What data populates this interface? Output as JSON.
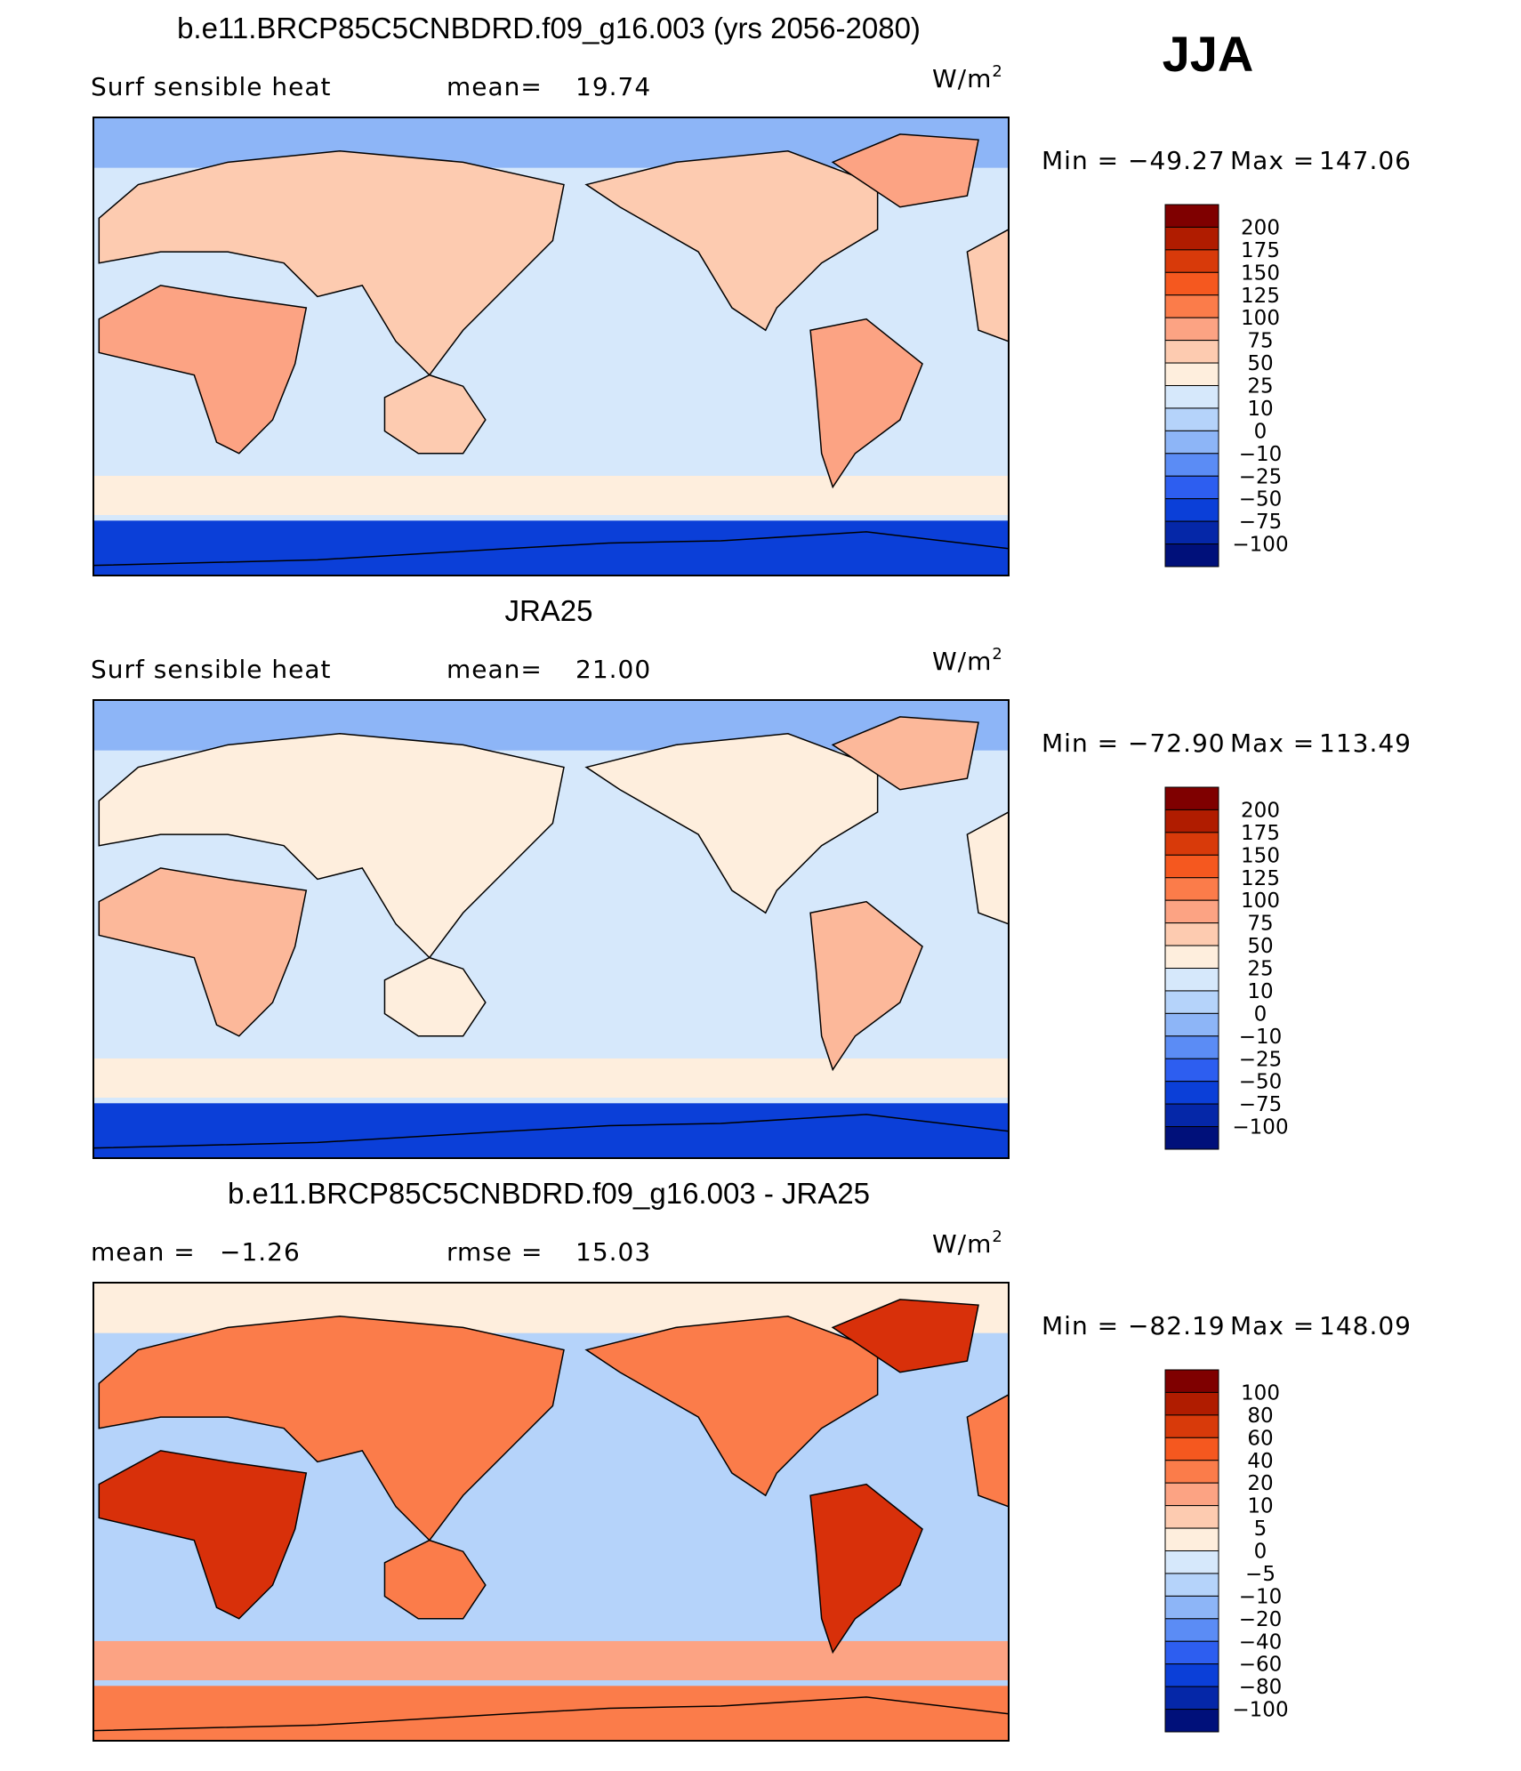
{
  "season": "JJA",
  "panels": [
    {
      "title": "b.e11.BRCP85C5CNBDRD.f09_g16.003 (yrs 2056-2080)",
      "left_text": "Surf  sensible  heat",
      "stats": [
        {
          "label": "mean=",
          "value": "19.74"
        }
      ],
      "units": "W/m",
      "units_sup": "2",
      "min_label": "Min  =",
      "min_value": "−49.27",
      "max_label": "Max  =",
      "max_value": "147.06",
      "colorbar_labels": [
        "200",
        "175",
        "150",
        "125",
        "100",
        "75",
        "50",
        "25",
        "10",
        "0",
        "−10",
        "−25",
        "−50",
        "−75",
        "−100"
      ],
      "colorbar_colors": [
        "#7f0000",
        "#b01c00",
        "#d83a0a",
        "#f5581f",
        "#fb7c4a",
        "#fca383",
        "#fdcbb0",
        "#feeedd",
        "#d6e8fb",
        "#b5d3fa",
        "#8db5f7",
        "#5b8cf5",
        "#2d5ef0",
        "#0b3fd8",
        "#0527a8",
        "#00107a"
      ]
    },
    {
      "title": "JRA25",
      "left_text": "Surf  sensible  heat",
      "stats": [
        {
          "label": "mean=",
          "value": "21.00"
        }
      ],
      "units": "W/m",
      "units_sup": "2",
      "min_label": "Min  =",
      "min_value": "−72.90",
      "max_label": "Max  =",
      "max_value": "113.49",
      "colorbar_labels": [
        "200",
        "175",
        "150",
        "125",
        "100",
        "75",
        "50",
        "25",
        "10",
        "0",
        "−10",
        "−25",
        "−50",
        "−75",
        "−100"
      ],
      "colorbar_colors": [
        "#7f0000",
        "#b01c00",
        "#d83a0a",
        "#f5581f",
        "#fb7c4a",
        "#fca383",
        "#fdcbb0",
        "#feeedd",
        "#d6e8fb",
        "#b5d3fa",
        "#8db5f7",
        "#5b8cf5",
        "#2d5ef0",
        "#0b3fd8",
        "#0527a8",
        "#00107a"
      ]
    },
    {
      "title": "b.e11.BRCP85C5CNBDRD.f09_g16.003 - JRA25",
      "stats": [
        {
          "label": "mean =",
          "value": "−1.26"
        },
        {
          "label": "rmse =",
          "value": "15.03"
        }
      ],
      "units": "W/m",
      "units_sup": "2",
      "min_label": "Min  =",
      "min_value": "−82.19",
      "max_label": "Max  =",
      "max_value": "148.09",
      "colorbar_labels": [
        "100",
        "80",
        "60",
        "40",
        "20",
        "10",
        "5",
        "0",
        "−5",
        "−10",
        "−20",
        "−40",
        "−60",
        "−80",
        "−100"
      ],
      "colorbar_colors": [
        "#7f0000",
        "#b01c00",
        "#d83a0a",
        "#f5581f",
        "#fb7c4a",
        "#fca383",
        "#fdcbb0",
        "#feeedd",
        "#d6e8fb",
        "#b5d3fa",
        "#8db5f7",
        "#5b8cf5",
        "#2d5ef0",
        "#0b3fd8",
        "#0527a8",
        "#00107a"
      ]
    }
  ]
}
